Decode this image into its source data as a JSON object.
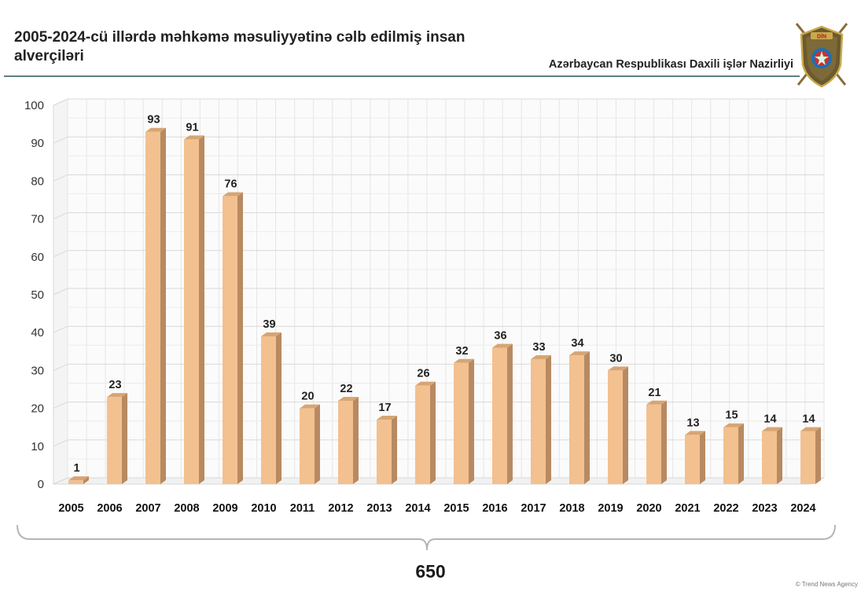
{
  "header": {
    "title": "2005-2024-cü illərdə məhkəmə məsuliyyətinə cəlb edilmiş insan alverçiləri",
    "organization": "Azərbaycan Respublikası Daxili işlər Nazirliyi",
    "emblem_text": "DİN"
  },
  "total": {
    "value": "650"
  },
  "credit": "© Trend News Agency",
  "colors": {
    "bar_front": "#f3c08f",
    "bar_side": "#b88a62",
    "bar_top": "#d7a574",
    "grid": "#d9d9d9",
    "header_rule": "#5d7f86"
  },
  "chart_data": {
    "type": "bar",
    "categories": [
      "2005",
      "2006",
      "2007",
      "2008",
      "2009",
      "2010",
      "2011",
      "2012",
      "2013",
      "2014",
      "2015",
      "2016",
      "2017",
      "2018",
      "2019",
      "2020",
      "2021",
      "2022",
      "2023",
      "2024"
    ],
    "values": [
      1,
      23,
      93,
      91,
      76,
      39,
      20,
      22,
      17,
      26,
      32,
      36,
      33,
      34,
      30,
      21,
      13,
      15,
      14,
      14
    ],
    "title": "2005-2024-cü illərdə məhkəmə məsuliyyətinə cəlb edilmiş insan alverçiləri",
    "xlabel": "",
    "ylabel": "",
    "ylim": [
      0,
      100
    ],
    "yticks": [
      0,
      10,
      20,
      30,
      40,
      50,
      60,
      70,
      80,
      90,
      100
    ],
    "grid": true,
    "style": "3d-bar",
    "data_labels": true,
    "total_label": "650"
  }
}
